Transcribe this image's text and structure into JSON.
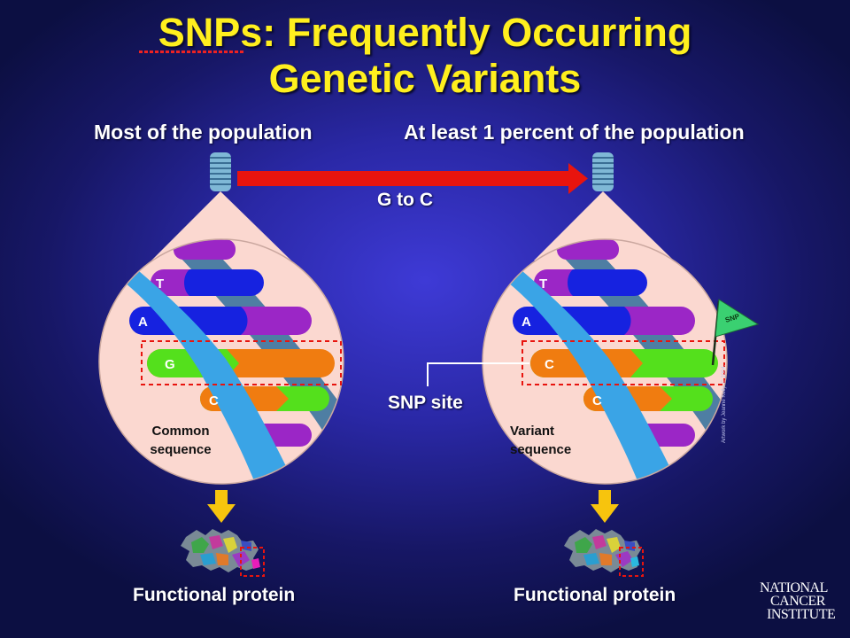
{
  "slide": {
    "title_line1": "SNPs: Frequently Occurring",
    "title_line2": "Genetic Variants"
  },
  "labels": {
    "most_population": "Most of the population",
    "least_population": "At least 1 percent of the population",
    "change": "G to C",
    "snp_site": "SNP site",
    "common_line1": "Common",
    "common_line2": "sequence",
    "variant_line1": "Variant",
    "variant_line2": "sequence",
    "protein_left": "Functional protein",
    "protein_right": "Functional protein",
    "snp_flag": "SNP",
    "copyright": "Artwork by Jeanne Kelly. © 2004."
  },
  "bases": {
    "common": [
      "T",
      "A",
      "G",
      "C"
    ],
    "variant": [
      "T",
      "A",
      "C",
      "C"
    ]
  },
  "logo": {
    "line1": "NATIONAL",
    "line2": "CANCER",
    "line3": "INSTITUTE"
  },
  "colors": {
    "title": "#ffef1e",
    "arrow": "#e8140e",
    "down_arrow": "#f7c40d",
    "base_purple": "#9b26c6",
    "base_blue": "#1622e0",
    "base_green": "#54e01c",
    "base_orange": "#f07c10",
    "backbone": "#3aa4e6",
    "lens_fill": "#fbd8d0",
    "flag": "#3ad071"
  }
}
